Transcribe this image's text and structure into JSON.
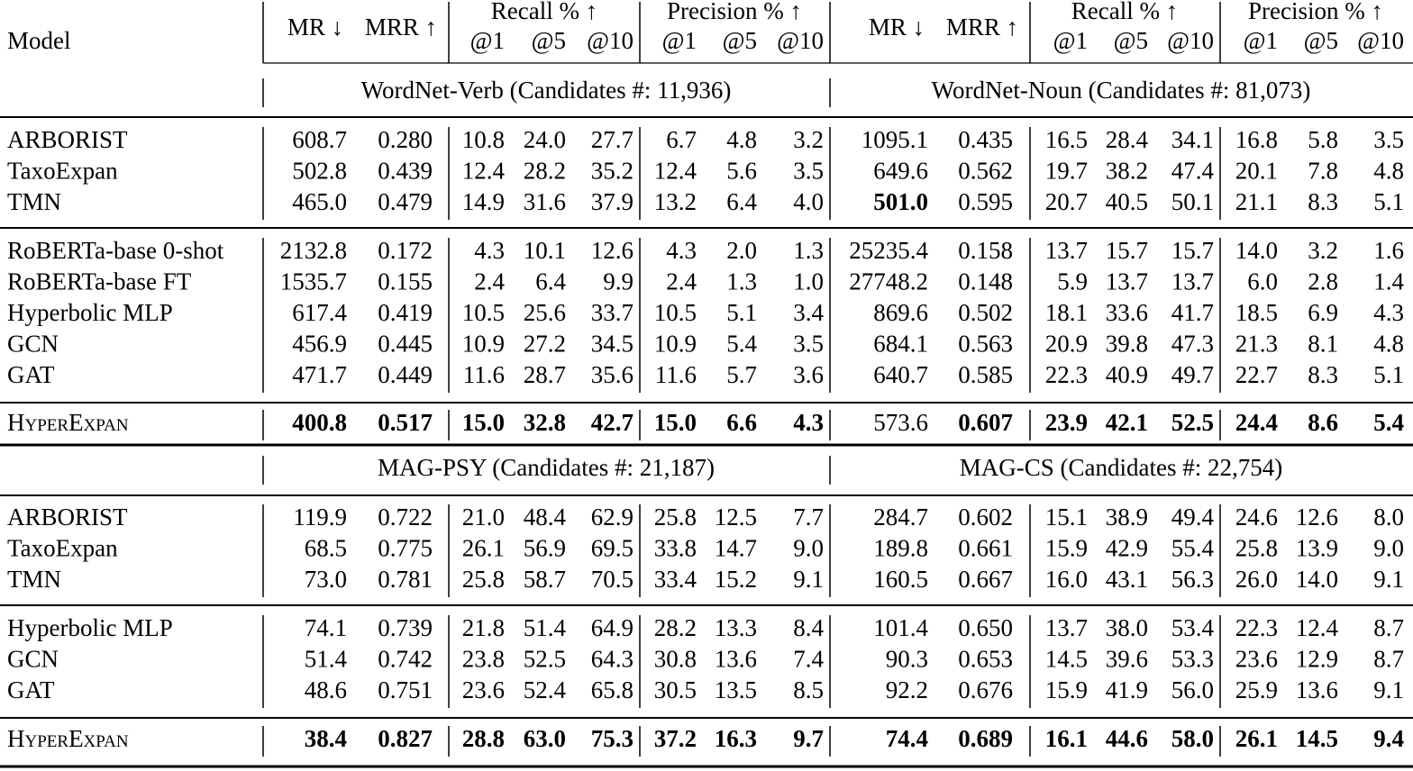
{
  "header": {
    "model": "Model",
    "groups": [
      {
        "mr": "MR ↓",
        "mrr": "MRR ↑",
        "recall": "Recall % ↑",
        "precision": "Precision % ↑",
        "at": [
          "@1",
          "@5",
          "@10",
          "@1",
          "@5",
          "@10"
        ]
      },
      {
        "mr": "MR ↓",
        "mrr": "MRR ↑",
        "recall": "Recall % ↑",
        "precision": "Precision % ↑",
        "at": [
          "@1",
          "@5",
          "@10",
          "@1",
          "@5",
          "@10"
        ]
      }
    ]
  },
  "sections": [
    {
      "datasets": [
        "WordNet-Verb (Candidates #: 11,936)",
        "WordNet-Noun (Candidates #: 81,073)"
      ],
      "groups": [
        [
          {
            "model": "ARBORIST",
            "cells": [
              "608.7",
              "0.280",
              "10.8",
              "24.0",
              "27.7",
              "6.7",
              "4.8",
              "3.2",
              "1095.1",
              "0.435",
              "16.5",
              "28.4",
              "34.1",
              "16.8",
              "5.8",
              "3.5"
            ]
          },
          {
            "model": "TaxoExpan",
            "cells": [
              "502.8",
              "0.439",
              "12.4",
              "28.2",
              "35.2",
              "12.4",
              "5.6",
              "3.5",
              "649.6",
              "0.562",
              "19.7",
              "38.2",
              "47.4",
              "20.1",
              "7.8",
              "4.8"
            ]
          },
          {
            "model": "TMN",
            "cells": [
              "465.0",
              "0.479",
              "14.9",
              "31.6",
              "37.9",
              "13.2",
              "6.4",
              "4.0",
              "501.0",
              "0.595",
              "20.7",
              "40.5",
              "50.1",
              "21.1",
              "8.3",
              "5.1"
            ],
            "bold": [
              8
            ]
          }
        ],
        [
          {
            "model": "RoBERTa-base 0-shot",
            "cells": [
              "2132.8",
              "0.172",
              "4.3",
              "10.1",
              "12.6",
              "4.3",
              "2.0",
              "1.3",
              "25235.4",
              "0.158",
              "13.7",
              "15.7",
              "15.7",
              "14.0",
              "3.2",
              "1.6"
            ]
          },
          {
            "model": "RoBERTa-base FT",
            "cells": [
              "1535.7",
              "0.155",
              "2.4",
              "6.4",
              "9.9",
              "2.4",
              "1.3",
              "1.0",
              "27748.2",
              "0.148",
              "5.9",
              "13.7",
              "13.7",
              "6.0",
              "2.8",
              "1.4"
            ]
          },
          {
            "model": "Hyperbolic MLP",
            "cells": [
              "617.4",
              "0.419",
              "10.5",
              "25.6",
              "33.7",
              "10.5",
              "5.1",
              "3.4",
              "869.6",
              "0.502",
              "18.1",
              "33.6",
              "41.7",
              "18.5",
              "6.9",
              "4.3"
            ]
          },
          {
            "model": "GCN",
            "cells": [
              "456.9",
              "0.445",
              "10.9",
              "27.2",
              "34.5",
              "10.9",
              "5.4",
              "3.5",
              "684.1",
              "0.563",
              "20.9",
              "39.8",
              "47.3",
              "21.3",
              "8.1",
              "4.8"
            ]
          },
          {
            "model": "GAT",
            "cells": [
              "471.7",
              "0.449",
              "11.6",
              "28.7",
              "35.6",
              "11.6",
              "5.7",
              "3.6",
              "640.7",
              "0.585",
              "22.3",
              "40.9",
              "49.7",
              "22.7",
              "8.3",
              "5.1"
            ]
          }
        ],
        [
          {
            "model": "HyperExpan",
            "cells": [
              "400.8",
              "0.517",
              "15.0",
              "32.8",
              "42.7",
              "15.0",
              "6.6",
              "4.3",
              "573.6",
              "0.607",
              "23.9",
              "42.1",
              "52.5",
              "24.4",
              "8.6",
              "5.4"
            ],
            "bold": [
              0,
              1,
              2,
              3,
              4,
              5,
              6,
              7,
              9,
              10,
              11,
              12,
              13,
              14,
              15
            ]
          }
        ]
      ]
    },
    {
      "datasets": [
        "MAG-PSY (Candidates #: 21,187)",
        "MAG-CS (Candidates #: 22,754)"
      ],
      "groups": [
        [
          {
            "model": "ARBORIST",
            "cells": [
              "119.9",
              "0.722",
              "21.0",
              "48.4",
              "62.9",
              "25.8",
              "12.5",
              "7.7",
              "284.7",
              "0.602",
              "15.1",
              "38.9",
              "49.4",
              "24.6",
              "12.6",
              "8.0"
            ]
          },
          {
            "model": "TaxoExpan",
            "cells": [
              "68.5",
              "0.775",
              "26.1",
              "56.9",
              "69.5",
              "33.8",
              "14.7",
              "9.0",
              "189.8",
              "0.661",
              "15.9",
              "42.9",
              "55.4",
              "25.8",
              "13.9",
              "9.0"
            ]
          },
          {
            "model": "TMN",
            "cells": [
              "73.0",
              "0.781",
              "25.8",
              "58.7",
              "70.5",
              "33.4",
              "15.2",
              "9.1",
              "160.5",
              "0.667",
              "16.0",
              "43.1",
              "56.3",
              "26.0",
              "14.0",
              "9.1"
            ]
          }
        ],
        [
          {
            "model": "Hyperbolic MLP",
            "cells": [
              "74.1",
              "0.739",
              "21.8",
              "51.4",
              "64.9",
              "28.2",
              "13.3",
              "8.4",
              "101.4",
              "0.650",
              "13.7",
              "38.0",
              "53.4",
              "22.3",
              "12.4",
              "8.7"
            ]
          },
          {
            "model": "GCN",
            "cells": [
              "51.4",
              "0.742",
              "23.8",
              "52.5",
              "64.3",
              "30.8",
              "13.6",
              "7.4",
              "90.3",
              "0.653",
              "14.5",
              "39.6",
              "53.3",
              "23.6",
              "12.9",
              "8.7"
            ]
          },
          {
            "model": "GAT",
            "cells": [
              "48.6",
              "0.751",
              "23.6",
              "52.4",
              "65.8",
              "30.5",
              "13.5",
              "8.5",
              "92.2",
              "0.676",
              "15.9",
              "41.9",
              "56.0",
              "25.9",
              "13.6",
              "9.1"
            ]
          }
        ],
        [
          {
            "model": "HyperExpan",
            "cells": [
              "38.4",
              "0.827",
              "28.8",
              "63.0",
              "75.3",
              "37.2",
              "16.3",
              "9.7",
              "74.4",
              "0.689",
              "16.1",
              "44.6",
              "58.0",
              "26.1",
              "14.5",
              "9.4"
            ],
            "bold": [
              0,
              1,
              2,
              3,
              4,
              5,
              6,
              7,
              8,
              9,
              10,
              11,
              12,
              13,
              14,
              15
            ]
          }
        ]
      ]
    }
  ]
}
